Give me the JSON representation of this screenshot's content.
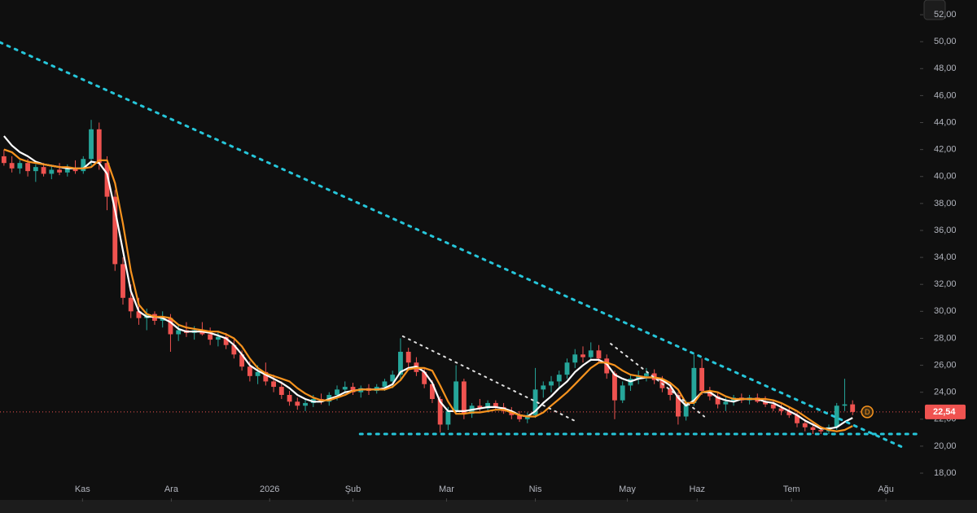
{
  "chart_data": {
    "type": "candlestick",
    "up_color": "#26a69a",
    "down_color": "#ef5350",
    "xlim": [
      -0.5,
      115.5
    ],
    "ylim": [
      16.13,
      53.09
    ],
    "yticks": [
      {
        "value": 18,
        "label": "18,00"
      },
      {
        "value": 20,
        "label": "20,00"
      },
      {
        "value": 22,
        "label": "22,00"
      },
      {
        "value": 24,
        "label": "24,00"
      },
      {
        "value": 26,
        "label": "26,00"
      },
      {
        "value": 28,
        "label": "28,00"
      },
      {
        "value": 30,
        "label": "30,00"
      },
      {
        "value": 32,
        "label": "32,00"
      },
      {
        "value": 34,
        "label": "34,00"
      },
      {
        "value": 36,
        "label": "36,00"
      },
      {
        "value": 38,
        "label": "38,00"
      },
      {
        "value": 40,
        "label": "40,00"
      },
      {
        "value": 42,
        "label": "42,00"
      },
      {
        "value": 44,
        "label": "44,00"
      },
      {
        "value": 46,
        "label": "46,00"
      },
      {
        "value": 48,
        "label": "48,00"
      },
      {
        "value": 50,
        "label": "50,00"
      },
      {
        "value": 52,
        "label": "52,00"
      }
    ],
    "xticks": [
      {
        "value": 9.9,
        "label": "Kas"
      },
      {
        "value": 21.1,
        "label": "Ara"
      },
      {
        "value": 33.5,
        "label": "2026"
      },
      {
        "value": 44,
        "label": "Şub"
      },
      {
        "value": 55.8,
        "label": "Mar"
      },
      {
        "value": 67,
        "label": "Nis"
      },
      {
        "value": 78.6,
        "label": "May"
      },
      {
        "value": 87.4,
        "label": "Haz"
      },
      {
        "value": 99.3,
        "label": "Tem"
      },
      {
        "value": 111.2,
        "label": "Ağu"
      }
    ],
    "ohlc": [
      [
        41.5,
        42,
        40.8,
        41
      ],
      [
        41,
        41.5,
        40.3,
        40.6
      ],
      [
        40.6,
        41.2,
        40.2,
        41
      ],
      [
        41,
        41.3,
        40,
        40.4
      ],
      [
        40.4,
        40.9,
        39.6,
        40.7
      ],
      [
        40.7,
        41,
        40,
        40.2
      ],
      [
        40.2,
        40.8,
        39.8,
        40.5
      ],
      [
        40.5,
        41,
        40.1,
        40.3
      ],
      [
        40.3,
        40.9,
        40,
        40.6
      ],
      [
        40.6,
        41.2,
        40.2,
        40.4
      ],
      [
        40.4,
        41.5,
        40.2,
        41.3
      ],
      [
        41.3,
        44.2,
        40.8,
        43.5
      ],
      [
        43.5,
        44,
        40.5,
        41
      ],
      [
        41,
        41.5,
        37.5,
        38.5
      ],
      [
        38.5,
        39,
        33,
        33.5
      ],
      [
        33.5,
        34,
        30.5,
        31
      ],
      [
        31,
        32,
        29.5,
        30
      ],
      [
        30,
        31,
        29,
        29.5
      ],
      [
        29.5,
        30.2,
        28.6,
        29.8
      ],
      [
        29.8,
        30,
        29,
        29.3
      ],
      [
        29.3,
        30,
        28.8,
        29.5
      ],
      [
        29.5,
        29.8,
        27,
        28.3
      ],
      [
        28.3,
        29,
        27.8,
        28.6
      ],
      [
        28.6,
        29.2,
        28.1,
        28.4
      ],
      [
        28.4,
        28.9,
        27.9,
        28.6
      ],
      [
        28.6,
        29.2,
        28.2,
        28.3
      ],
      [
        28.3,
        28.8,
        27.5,
        27.9
      ],
      [
        27.9,
        28.5,
        27.4,
        28.1
      ],
      [
        28.1,
        28.4,
        27.2,
        27.5
      ],
      [
        27.5,
        27.9,
        26.5,
        26.8
      ],
      [
        26.8,
        27.1,
        25.6,
        25.9
      ],
      [
        25.9,
        26.3,
        24.8,
        25.2
      ],
      [
        25.2,
        26,
        24.6,
        25.5
      ],
      [
        25.5,
        26.2,
        24.5,
        24.8
      ],
      [
        24.8,
        25.3,
        24,
        24.4
      ],
      [
        24.4,
        24.8,
        23.5,
        23.8
      ],
      [
        23.8,
        24.1,
        23,
        23.3
      ],
      [
        23.3,
        23.6,
        22.7,
        23
      ],
      [
        23,
        23.5,
        22.6,
        23.2
      ],
      [
        23.2,
        23.8,
        22.9,
        23.5
      ],
      [
        23.5,
        23.9,
        23.1,
        23.3
      ],
      [
        23.3,
        24,
        23,
        23.8
      ],
      [
        23.8,
        24.5,
        23.4,
        24.2
      ],
      [
        24.2,
        24.8,
        23.9,
        24.4
      ],
      [
        24.4,
        24.7,
        23.8,
        24
      ],
      [
        24,
        24.5,
        23.6,
        24.3
      ],
      [
        24.3,
        24.6,
        23.8,
        24.1
      ],
      [
        24.1,
        24.6,
        23.9,
        24.4
      ],
      [
        24.4,
        25,
        24.1,
        24.8
      ],
      [
        24.8,
        25.6,
        24.3,
        25.3
      ],
      [
        25.3,
        28,
        25,
        27
      ],
      [
        27,
        27.3,
        25.8,
        26.2
      ],
      [
        26.2,
        26.6,
        25.2,
        25.5
      ],
      [
        25.5,
        25.8,
        24.3,
        24.6
      ],
      [
        24.6,
        24.9,
        23.2,
        23.5
      ],
      [
        23.5,
        23.7,
        21,
        21.6
      ],
      [
        21.6,
        22.9,
        21.2,
        22.6
      ],
      [
        22.6,
        26,
        22.4,
        24.8
      ],
      [
        24.8,
        25,
        22,
        22.4
      ],
      [
        22.4,
        23.2,
        22.1,
        23
      ],
      [
        23,
        23.5,
        22.6,
        22.8
      ],
      [
        22.8,
        23.4,
        22.5,
        23.2
      ],
      [
        23.2,
        23.4,
        22.7,
        22.9
      ],
      [
        22.9,
        23.2,
        22.4,
        22.6
      ],
      [
        22.6,
        22.9,
        22,
        22.3
      ],
      [
        22.3,
        22.6,
        21.8,
        22
      ],
      [
        22,
        22.5,
        21.7,
        22.3
      ],
      [
        22.3,
        25.8,
        22.1,
        24.2
      ],
      [
        24.2,
        24.8,
        23.6,
        24.5
      ],
      [
        24.5,
        25.2,
        24,
        24.8
      ],
      [
        24.8,
        25.6,
        24.3,
        25.3
      ],
      [
        25.3,
        26.5,
        25,
        26.2
      ],
      [
        26.2,
        27.2,
        25.8,
        26.8
      ],
      [
        26.8,
        27.4,
        26.2,
        26.6
      ],
      [
        26.6,
        27.7,
        26.3,
        27.1
      ],
      [
        27.1,
        27.5,
        26.2,
        26.5
      ],
      [
        26.5,
        26.8,
        25,
        25.4
      ],
      [
        25.4,
        25.6,
        22,
        23.4
      ],
      [
        23.4,
        24.8,
        23.2,
        24.5
      ],
      [
        24.5,
        25.3,
        24.1,
        25
      ],
      [
        25,
        25.6,
        24.6,
        25.2
      ],
      [
        25.2,
        25.8,
        24.8,
        25.4
      ],
      [
        25.4,
        25.7,
        24.6,
        24.9
      ],
      [
        24.9,
        25.2,
        24,
        24.3
      ],
      [
        24.3,
        24.7,
        23.4,
        23.8
      ],
      [
        23.8,
        24,
        21.6,
        22.2
      ],
      [
        22.2,
        23.4,
        21.9,
        23.2
      ],
      [
        23.2,
        26.8,
        23,
        25.8
      ],
      [
        25.8,
        26.5,
        23.8,
        24.1
      ],
      [
        24.1,
        24.4,
        23.4,
        23.7
      ],
      [
        23.7,
        24,
        22.8,
        23.1
      ],
      [
        23.1,
        23.6,
        22.6,
        23.3
      ],
      [
        23.3,
        23.8,
        23,
        23.6
      ],
      [
        23.6,
        23.9,
        23.2,
        23.4
      ],
      [
        23.4,
        23.8,
        23.1,
        23.6
      ],
      [
        23.6,
        23.9,
        23.2,
        23.3
      ],
      [
        23.3,
        23.7,
        22.9,
        23.1
      ],
      [
        23.1,
        23.4,
        22.6,
        22.8
      ],
      [
        22.8,
        23.1,
        22.3,
        22.6
      ],
      [
        22.6,
        22.9,
        22.1,
        22.3
      ],
      [
        22.3,
        22.5,
        21.4,
        21.7
      ],
      [
        21.7,
        22,
        21.1,
        21.4
      ],
      [
        21.4,
        21.7,
        20.9,
        21.2
      ],
      [
        21.2,
        21.5,
        20.9,
        21.1
      ],
      [
        21.1,
        21.6,
        20.9,
        21.4
      ],
      [
        21.4,
        23.2,
        21.2,
        23
      ],
      [
        23,
        25,
        22.6,
        23.1
      ],
      [
        23.1,
        23.4,
        22.3,
        22.54
      ]
    ],
    "series": [
      {
        "color": "#ffffff",
        "values": [
          43,
          42.3,
          41.8,
          41.5,
          41.1,
          40.9,
          40.8,
          40.7,
          40.6,
          40.6,
          40.6,
          41.1,
          41,
          40.2,
          37.5,
          34.5,
          31.5,
          30,
          29.6,
          29.6,
          29.5,
          29.2,
          28.7,
          28.5,
          28.5,
          28.5,
          28.4,
          28.2,
          28,
          27.5,
          26.8,
          26,
          25.6,
          25.3,
          25,
          24.7,
          24.3,
          23.8,
          23.5,
          23.3,
          23.3,
          23.5,
          23.7,
          24,
          24.1,
          24.2,
          24.2,
          24.2,
          24.3,
          24.6,
          25.5,
          25.8,
          25.9,
          25.5,
          24.7,
          23.3,
          22.6,
          22.6,
          22.6,
          22.7,
          22.8,
          22.9,
          22.9,
          22.8,
          22.6,
          22.3,
          22.2,
          22.6,
          23.2,
          23.7,
          24.3,
          24.8,
          25.5,
          26,
          26.4,
          26.4,
          26.1,
          25.3,
          25,
          24.8,
          25,
          25.1,
          25.1,
          24.9,
          24.5,
          23.6,
          23,
          23.4,
          24,
          24,
          23.6,
          23.4,
          23.3,
          23.5,
          23.5,
          23.5,
          23.3,
          23.2,
          22.9,
          22.6,
          22.3,
          21.9,
          21.6,
          21.3,
          21.3,
          21.4,
          21.8,
          22.1
        ]
      },
      {
        "color": "#f7931e",
        "values": [
          42,
          41.8,
          41.3,
          41.1,
          41,
          40.9,
          40.8,
          40.7,
          40.7,
          40.6,
          40.6,
          40.7,
          41.2,
          41.2,
          39.5,
          36.5,
          33,
          30.5,
          29.8,
          29.6,
          29.6,
          29.5,
          29,
          28.8,
          28.7,
          28.6,
          28.5,
          28.5,
          28.3,
          28,
          27.4,
          26.5,
          25.8,
          25.4,
          25.2,
          25,
          24.8,
          24.3,
          23.9,
          23.6,
          23.4,
          23.4,
          23.6,
          23.8,
          24.1,
          24.2,
          24.2,
          24.2,
          24.2,
          24.4,
          24.9,
          25.7,
          25.8,
          25.8,
          25.6,
          24.5,
          23.3,
          22.4,
          22.4,
          22.5,
          22.5,
          22.6,
          22.7,
          22.7,
          22.5,
          22.3,
          22.2,
          22.2,
          22.5,
          23,
          23.5,
          24,
          24.6,
          25.2,
          25.8,
          26.2,
          26.2,
          26,
          25.6,
          25.3,
          25.2,
          25.1,
          25.1,
          25,
          24.7,
          24.2,
          23.2,
          23.2,
          24,
          24.1,
          24,
          23.7,
          23.5,
          23.5,
          23.5,
          23.5,
          23.5,
          23.4,
          23.2,
          22.9,
          22.6,
          22.2,
          21.8,
          21.4,
          21.2,
          21.1,
          21.2,
          21.5
        ]
      }
    ],
    "drawings": [
      {
        "color": "#26c6da",
        "points": [
          [
            -0.5,
            49.95
          ],
          [
            113.5,
            19.87
          ]
        ]
      },
      {
        "color": "#26c6da",
        "points": [
          [
            44.9,
            20.9
          ],
          [
            115.5,
            20.9
          ]
        ]
      },
      {
        "color": "#e0e0e0",
        "points": [
          [
            50.3,
            28.15
          ],
          [
            71.9,
            21.9
          ]
        ]
      },
      {
        "color": "#e0e0e0",
        "points": [
          [
            76.5,
            27.6
          ],
          [
            88.3,
            22.2
          ]
        ]
      }
    ],
    "last_price": 22.54,
    "last_price_label": "22,54",
    "marker": "D"
  }
}
